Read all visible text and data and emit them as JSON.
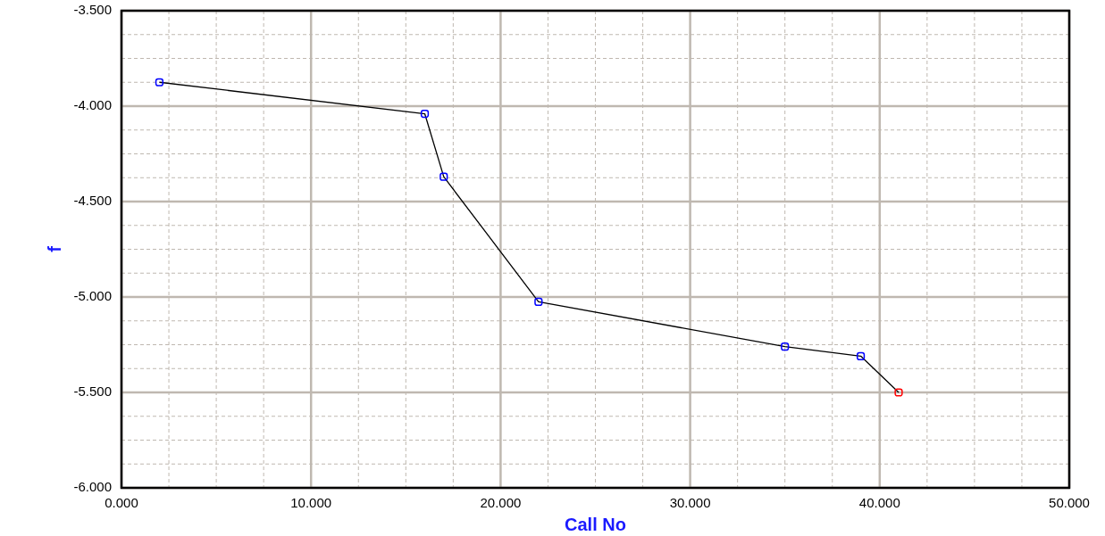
{
  "chart_data": {
    "type": "line",
    "xlabel": "Call No",
    "ylabel": "f",
    "x": [
      2,
      16,
      17,
      22,
      35,
      39,
      41
    ],
    "series": [
      {
        "color": "#000000",
        "colors": [
          "#0000ff",
          "#0000ff",
          "#0000ff",
          "#0000ff",
          "#0000ff",
          "#0000ff",
          "#ff0000"
        ],
        "values": [
          -3.875,
          -4.04,
          -4.37,
          -5.025,
          -5.26,
          -5.31,
          -5.5
        ]
      }
    ],
    "xlim": [
      0,
      50
    ],
    "ylim": [
      -6,
      -3.5
    ],
    "xticks": [
      {
        "value": 0,
        "label": "0.000"
      },
      {
        "value": 2.5,
        "label": null
      },
      {
        "value": 5,
        "label": null
      },
      {
        "value": 7.5,
        "label": null
      },
      {
        "value": 10,
        "label": "10.000"
      },
      {
        "value": 12.5,
        "label": null
      },
      {
        "value": 15,
        "label": null
      },
      {
        "value": 17.5,
        "label": null
      },
      {
        "value": 20,
        "label": "20.000"
      },
      {
        "value": 22.5,
        "label": null
      },
      {
        "value": 25,
        "label": null
      },
      {
        "value": 27.5,
        "label": null
      },
      {
        "value": 30,
        "label": "30.000"
      },
      {
        "value": 32.5,
        "label": null
      },
      {
        "value": 35,
        "label": null
      },
      {
        "value": 37.5,
        "label": null
      },
      {
        "value": 40,
        "label": "40.000"
      },
      {
        "value": 42.5,
        "label": null
      },
      {
        "value": 45,
        "label": null
      },
      {
        "value": 47.5,
        "label": null
      },
      {
        "value": 50,
        "label": "50.000"
      }
    ],
    "yticks": [
      {
        "value": -6,
        "label": "-6.000"
      },
      {
        "value": -5.875,
        "label": null
      },
      {
        "value": -5.75,
        "label": null
      },
      {
        "value": -5.625,
        "label": null
      },
      {
        "value": -5.5,
        "label": "-5.500"
      },
      {
        "value": -5.375,
        "label": null
      },
      {
        "value": -5.25,
        "label": null
      },
      {
        "value": -5.125,
        "label": null
      },
      {
        "value": -5,
        "label": "-5.000"
      },
      {
        "value": -4.875,
        "label": null
      },
      {
        "value": -4.75,
        "label": null
      },
      {
        "value": -4.625,
        "label": null
      },
      {
        "value": -4.5,
        "label": "-4.500"
      },
      {
        "value": -4.375,
        "label": null
      },
      {
        "value": -4.25,
        "label": null
      },
      {
        "value": -4.125,
        "label": null
      },
      {
        "value": -4,
        "label": "-4.000"
      },
      {
        "value": -3.875,
        "label": null
      },
      {
        "value": -3.75,
        "label": null
      },
      {
        "value": -3.625,
        "label": null
      },
      {
        "value": -3.5,
        "label": "-3.500"
      }
    ],
    "grid": true,
    "legend": false,
    "marker": "square",
    "line_style": "solid"
  }
}
